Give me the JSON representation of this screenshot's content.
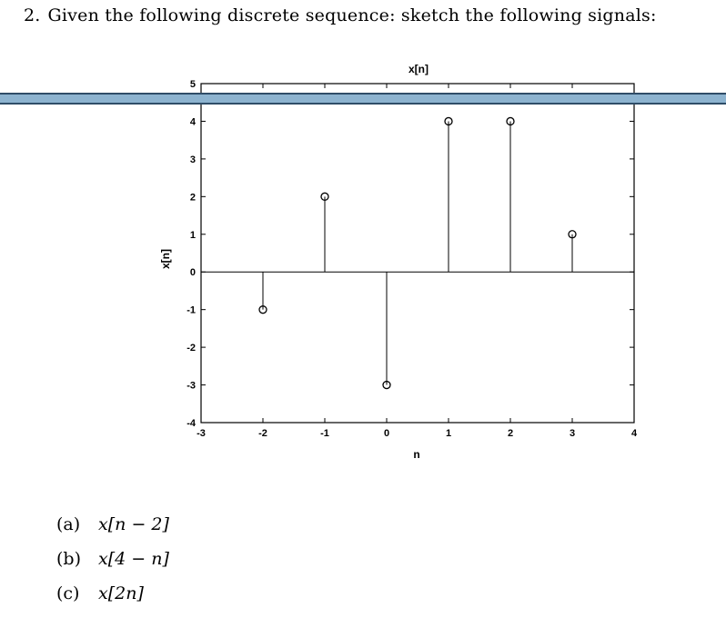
{
  "problem": {
    "number": "2.",
    "text": "Given the following discrete sequence: sketch the following signals:"
  },
  "chart_data": {
    "type": "stem",
    "title": "x[n]",
    "xlabel": "n",
    "ylabel": "x[n]",
    "xlim": [
      -3,
      4
    ],
    "ylim": [
      -4,
      5
    ],
    "xticks": [
      "-3",
      "-2",
      "-1",
      "0",
      "1",
      "2",
      "3",
      "4"
    ],
    "yticks": [
      "5",
      "4",
      "3",
      "2",
      "1",
      "0",
      "-1",
      "-2",
      "-3",
      "-4"
    ],
    "x": [
      -2,
      -1,
      0,
      1,
      2,
      3
    ],
    "values": [
      -1,
      2,
      -3,
      4,
      4,
      1
    ],
    "marker": "circle",
    "color": "#000000"
  },
  "parts": [
    {
      "label": "(a)",
      "expr": "x[n − 2]"
    },
    {
      "label": "(b)",
      "expr": "x[4 − n]"
    },
    {
      "label": "(c)",
      "expr": "x[2n]"
    }
  ],
  "colors": {
    "band": "#8db3cf",
    "band_border": "#2f4d68"
  }
}
